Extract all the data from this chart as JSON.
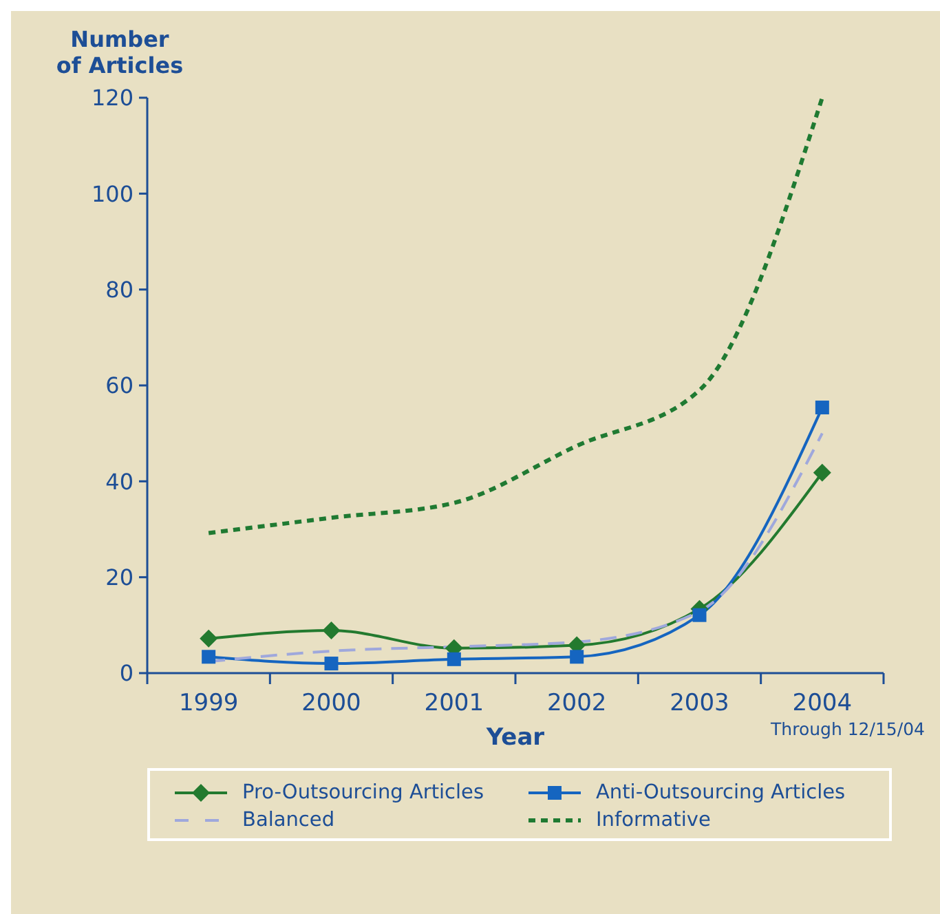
{
  "chart_data": {
    "type": "line",
    "ylabel": "Number of Articles",
    "xlabel": "Year",
    "annotations": [
      "Through 12/15/04"
    ],
    "categories": [
      "1999",
      "2000",
      "2001",
      "2002",
      "2003",
      "2004"
    ],
    "series": [
      {
        "name": "Pro-Outsourcing Articles",
        "color": "#237a2f",
        "marker": "diamond",
        "line_style": "solid",
        "values": [
          7.2,
          8.9,
          5.2,
          5.8,
          13.4,
          41.8
        ]
      },
      {
        "name": "Anti-Outsourcing Articles",
        "color": "#1565c0",
        "marker": "square",
        "line_style": "solid",
        "values": [
          3.4,
          2.0,
          2.9,
          3.4,
          12.1,
          55.4
        ]
      },
      {
        "name": "Balanced",
        "color": "#9fa8dc",
        "marker": "none",
        "line_style": "dashed",
        "values": [
          2.4,
          4.6,
          5.5,
          6.5,
          12.9,
          50
        ]
      },
      {
        "name": "Informative",
        "color": "#1f7a32",
        "marker": "none",
        "line_style": "dotted",
        "values": [
          29.2,
          32.4,
          35.5,
          47.4,
          59,
          120
        ]
      }
    ],
    "ylim": [
      0,
      120
    ],
    "yticks": [
      0,
      20,
      40,
      60,
      80,
      100,
      120
    ],
    "legend": "bottom"
  }
}
